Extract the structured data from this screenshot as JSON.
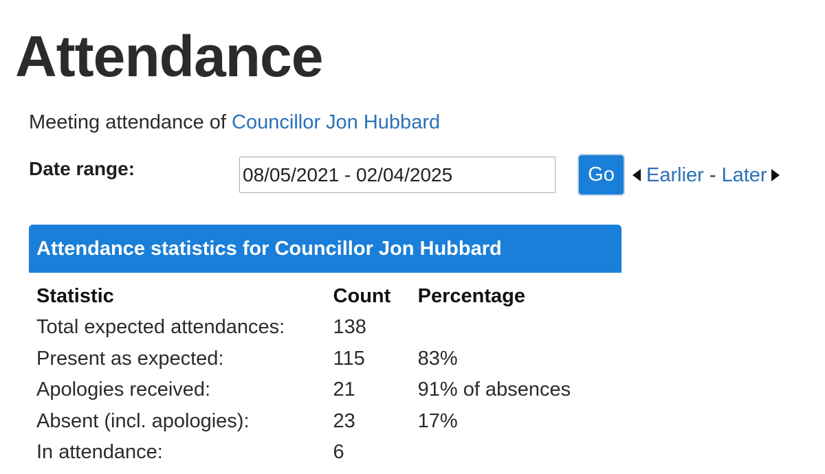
{
  "page": {
    "title": "Attendance",
    "intro_text": "Meeting attendance of ",
    "councillor_name": "Councillor Jon Hubbard"
  },
  "date_range": {
    "label": "Date range:",
    "value": "08/05/2021 - 02/04/2025",
    "go_label": "Go",
    "earlier_label": "Earlier",
    "separator": "-",
    "later_label": "Later"
  },
  "stats": {
    "header": "Attendance statistics for Councillor Jon Hubbard",
    "columns": [
      "Statistic",
      "Count",
      "Percentage"
    ],
    "rows": [
      {
        "statistic": "Total expected attendances:",
        "count": "138",
        "percentage": ""
      },
      {
        "statistic": "Present as expected:",
        "count": "115",
        "percentage": "83%"
      },
      {
        "statistic": "Apologies received:",
        "count": "21",
        "percentage": "91% of absences"
      },
      {
        "statistic": "Absent (incl. apologies):",
        "count": "23",
        "percentage": "17%"
      },
      {
        "statistic": "In attendance:",
        "count": "6",
        "percentage": ""
      }
    ]
  },
  "colors": {
    "accent": "#1a7fd8",
    "link": "#2a70b8"
  }
}
